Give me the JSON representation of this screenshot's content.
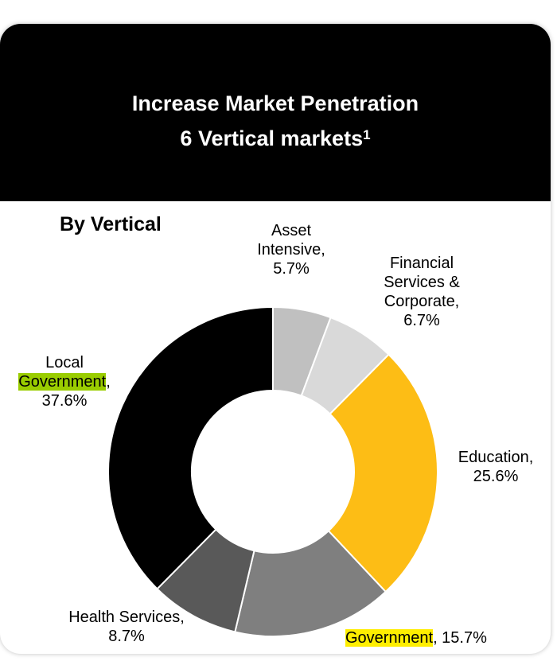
{
  "header": {
    "title_line1": "Increase Market Penetration",
    "title_line2": "6 Vertical markets",
    "title_sup": "1"
  },
  "subtitle": "By Vertical",
  "colors": {
    "header_bg": "#000000",
    "header_text": "#ffffff",
    "highlight_green": "#9acd00",
    "highlight_yellow": "#ffee00"
  },
  "chart_data": {
    "type": "pie",
    "subtype": "donut",
    "title": "By Vertical",
    "slices": [
      {
        "name": "Asset Intensive",
        "value": 5.7,
        "color": "#c0c0c0"
      },
      {
        "name": "Financial Services & Corporate",
        "value": 6.7,
        "color": "#d9d9d9"
      },
      {
        "name": "Education",
        "value": 25.6,
        "color": "#fdbd15"
      },
      {
        "name": "Government",
        "value": 15.7,
        "color": "#7f7f7f"
      },
      {
        "name": "Health Services",
        "value": 8.7,
        "color": "#595959"
      },
      {
        "name": "Local Government",
        "value": 37.6,
        "color": "#000000"
      }
    ],
    "labels": {
      "asset": {
        "line1": "Asset",
        "line2": "Intensive,",
        "line3": "5.7%"
      },
      "financial": {
        "line1": "Financial",
        "line2": "Services &",
        "line3": "Corporate,",
        "line4": "6.7%"
      },
      "education": {
        "line1": "Education,",
        "line2": "25.6%"
      },
      "government": {
        "name": "Government",
        "rest": ", 15.7%"
      },
      "health": {
        "line1": "Health Services,",
        "line2": "8.7%"
      },
      "local": {
        "line1": "Local",
        "name": "Government",
        "comma": ",",
        "line3": "37.6%"
      }
    }
  }
}
